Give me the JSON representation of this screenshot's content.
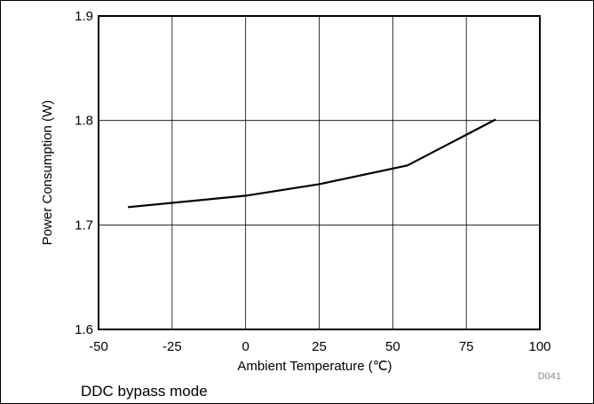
{
  "chart_data": {
    "type": "line",
    "xlabel": "Ambient Temperature (℃)",
    "ylabel": "Power Consumption (W)",
    "xlim": [
      -50,
      100
    ],
    "ylim": [
      1.6,
      1.9
    ],
    "x_ticks": [
      -50,
      -25,
      0,
      25,
      50,
      75,
      100
    ],
    "y_ticks": [
      1.6,
      1.7,
      1.8,
      1.9
    ],
    "y_tick_labels": [
      "1.6",
      "1.7",
      "1.8",
      "1.9"
    ],
    "grid": true,
    "series": [
      {
        "x": [
          -40,
          0,
          25,
          55,
          85
        ],
        "y": [
          1.717,
          1.728,
          1.739,
          1.757,
          1.801
        ]
      }
    ],
    "line_color": "#000000"
  },
  "figure": {
    "reference_code": "D041",
    "caption": "DDC bypass mode"
  }
}
